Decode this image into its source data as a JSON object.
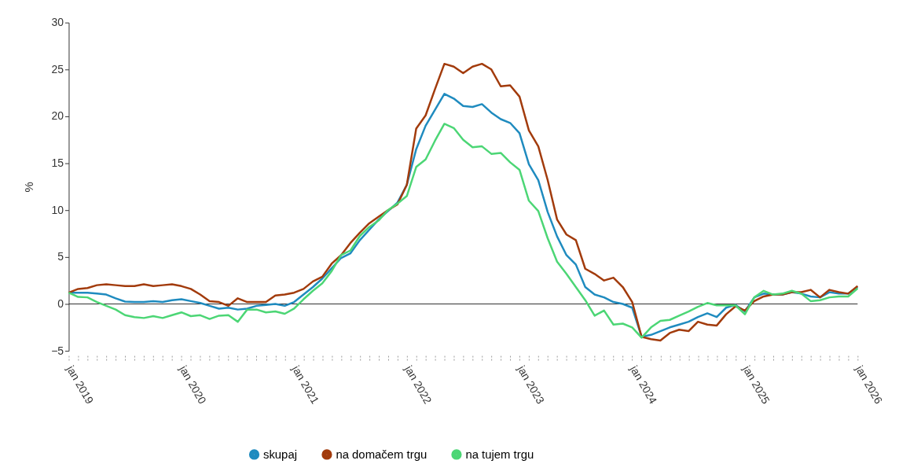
{
  "chart_data": {
    "type": "line",
    "ylabel": "%",
    "categories": [
      "jan 2019",
      null,
      null,
      null,
      null,
      null,
      null,
      null,
      null,
      null,
      null,
      null,
      "jan 2020",
      null,
      null,
      null,
      null,
      null,
      null,
      null,
      null,
      null,
      null,
      null,
      "jan 2021",
      null,
      null,
      null,
      null,
      null,
      null,
      null,
      null,
      null,
      null,
      null,
      "jan 2022",
      null,
      null,
      null,
      null,
      null,
      null,
      null,
      null,
      null,
      null,
      null,
      "jan 2023",
      null,
      null,
      null,
      null,
      null,
      null,
      null,
      null,
      null,
      null,
      null,
      "jan 2024",
      null,
      null,
      null,
      null,
      null,
      null,
      null,
      null,
      null,
      null,
      null,
      "jan 2025",
      null,
      null,
      null,
      null,
      null,
      null,
      null,
      null,
      null,
      null,
      null,
      "jan 2026"
    ],
    "series": [
      {
        "name": "skupaj",
        "color": "#1f8bbf",
        "values": [
          1.2,
          1.2,
          1.2,
          1.1,
          1.0,
          0.6,
          0.25,
          0.2,
          0.2,
          0.3,
          0.2,
          0.4,
          0.5,
          0.3,
          0.1,
          -0.2,
          -0.5,
          -0.4,
          -0.6,
          -0.5,
          -0.2,
          -0.1,
          0.0,
          -0.2,
          0.2,
          1.0,
          1.8,
          2.7,
          3.8,
          4.9,
          5.4,
          6.8,
          7.9,
          9.0,
          9.9,
          10.8,
          12.7,
          16.5,
          19.0,
          20.7,
          22.4,
          21.9,
          21.1,
          21.0,
          21.3,
          20.4,
          19.7,
          19.3,
          18.2,
          14.9,
          13.2,
          9.8,
          7.2,
          5.2,
          4.2,
          1.8,
          1.0,
          0.7,
          0.2,
          0.0,
          -0.4,
          -3.5,
          -3.3,
          -2.9,
          -2.5,
          -2.2,
          -1.9,
          -1.4,
          -1.0,
          -1.4,
          -0.4,
          -0.1,
          -0.8,
          0.7,
          1.1,
          1.0,
          1.0,
          1.25,
          1.1,
          0.8,
          0.7,
          1.25,
          1.1,
          1.1,
          1.8
        ]
      },
      {
        "name": "na domačem trgu",
        "color": "#a23b0c",
        "values": [
          1.2,
          1.6,
          1.7,
          2.0,
          2.1,
          2.0,
          1.9,
          1.9,
          2.1,
          1.9,
          2.0,
          2.1,
          1.9,
          1.6,
          1.0,
          0.3,
          0.2,
          -0.2,
          0.6,
          0.2,
          0.2,
          0.2,
          0.9,
          1.0,
          1.2,
          1.6,
          2.4,
          2.9,
          4.3,
          5.2,
          6.5,
          7.6,
          8.6,
          9.3,
          10.0,
          10.6,
          12.7,
          18.7,
          20.1,
          22.9,
          25.6,
          25.3,
          24.6,
          25.3,
          25.6,
          25.0,
          23.2,
          23.3,
          22.1,
          18.5,
          16.8,
          13.2,
          9.0,
          7.4,
          6.8,
          3.75,
          3.2,
          2.5,
          2.8,
          1.8,
          0.2,
          -3.5,
          -3.75,
          -3.9,
          -3.1,
          -2.75,
          -2.9,
          -1.9,
          -2.2,
          -2.3,
          -1.1,
          -0.25,
          -0.7,
          0.3,
          0.8,
          1.0,
          1.0,
          1.25,
          1.25,
          1.5,
          0.7,
          1.5,
          1.25,
          1.1,
          1.9
        ]
      },
      {
        "name": "na tujem trgu",
        "color": "#4cd675",
        "values": [
          1.2,
          0.75,
          0.7,
          0.2,
          -0.2,
          -0.6,
          -1.2,
          -1.4,
          -1.5,
          -1.3,
          -1.5,
          -1.2,
          -0.9,
          -1.3,
          -1.2,
          -1.6,
          -1.25,
          -1.2,
          -1.9,
          -0.6,
          -0.6,
          -0.9,
          -0.8,
          -1.05,
          -0.5,
          0.5,
          1.4,
          2.2,
          3.5,
          5.2,
          5.7,
          7.25,
          8.2,
          8.9,
          10.0,
          10.7,
          11.5,
          14.6,
          15.4,
          17.4,
          19.2,
          18.75,
          17.5,
          16.7,
          16.8,
          16.0,
          16.1,
          15.1,
          14.3,
          11.0,
          9.9,
          7.0,
          4.5,
          3.2,
          1.8,
          0.4,
          -1.25,
          -0.7,
          -2.2,
          -2.1,
          -2.5,
          -3.6,
          -2.5,
          -1.8,
          -1.7,
          -1.25,
          -0.8,
          -0.3,
          0.1,
          -0.15,
          -0.15,
          -0.15,
          -1.1,
          0.7,
          1.4,
          1.0,
          1.1,
          1.4,
          1.1,
          0.3,
          0.4,
          0.7,
          0.8,
          0.8,
          1.65
        ]
      }
    ],
    "ylim": [
      -5,
      30
    ],
    "yticks": [
      -5,
      0,
      5,
      10,
      15,
      20,
      25,
      30
    ],
    "ref_lines": [
      {
        "axis": "y",
        "value": 0,
        "color": "#333333"
      }
    ],
    "grid": false,
    "legend": "bottom",
    "line_style": "solid",
    "marker": "none"
  }
}
